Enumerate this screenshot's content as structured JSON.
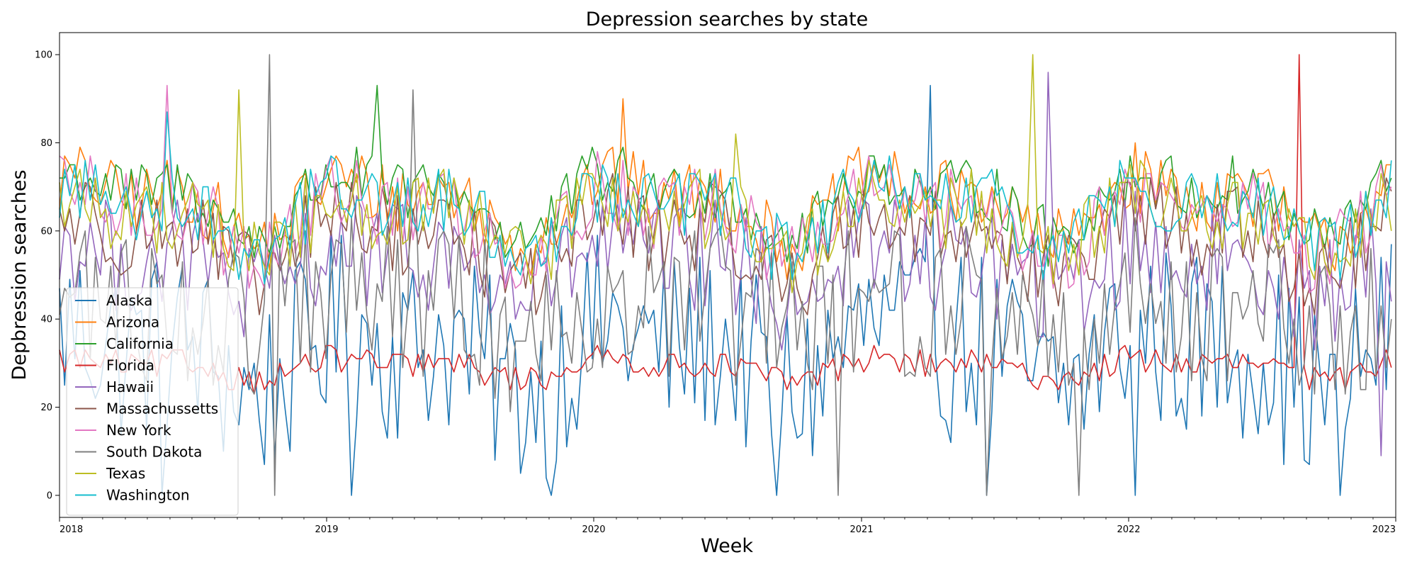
{
  "chart_data": {
    "type": "line",
    "title": "Depression searches by state",
    "xlabel": "Week",
    "ylabel": "Depbression searches",
    "x_start": "2018-01-01",
    "x_end": "2023-01-01",
    "x_ticks": [
      "2018",
      "2019",
      "2020",
      "2021",
      "2022",
      "2023"
    ],
    "y_ticks": [
      "0",
      "20",
      "40",
      "60",
      "80",
      "100"
    ],
    "ylim": [
      -5,
      105
    ],
    "grid": false,
    "legend_position": "lower-left",
    "series": [
      {
        "name": "Alaska",
        "color": "#1f77b4",
        "base": 32,
        "amp": 9,
        "noise": 22,
        "min": 0,
        "max": 93,
        "spikes": [
          [
            170,
            93
          ]
        ],
        "dips": [
          [
            20,
            0
          ],
          [
            210,
            0
          ],
          [
            140,
            0
          ],
          [
            250,
            0
          ],
          [
            57,
            0
          ],
          [
            96,
            0
          ],
          [
            181,
            0
          ]
        ]
      },
      {
        "name": "Arizona",
        "color": "#ff7f0e",
        "base": 66,
        "amp": 9,
        "noise": 8,
        "min": 35,
        "max": 90,
        "spikes": [
          [
            110,
            90
          ]
        ],
        "dips": []
      },
      {
        "name": "California",
        "color": "#2ca02c",
        "base": 67,
        "amp": 9,
        "noise": 7,
        "min": 40,
        "max": 93,
        "spikes": [
          [
            62,
            93
          ]
        ],
        "dips": []
      },
      {
        "name": "Florida",
        "color": "#d62728",
        "base": 29,
        "amp": 3,
        "noise": 3,
        "min": 19,
        "max": 100,
        "spikes": [
          [
            242,
            100
          ]
        ],
        "dips": []
      },
      {
        "name": "Hawaii",
        "color": "#9467bd",
        "base": 52,
        "amp": 7,
        "noise": 13,
        "min": 9,
        "max": 96,
        "spikes": [
          [
            193,
            96
          ]
        ],
        "dips": [
          [
            258,
            9
          ]
        ]
      },
      {
        "name": "Massachussetts",
        "color": "#8c564b",
        "base": 58,
        "amp": 9,
        "noise": 10,
        "min": 19,
        "max": 86,
        "spikes": [],
        "dips": []
      },
      {
        "name": "New York",
        "color": "#e377c2",
        "base": 63,
        "amp": 9,
        "noise": 9,
        "min": 30,
        "max": 93,
        "spikes": [
          [
            21,
            93
          ]
        ],
        "dips": []
      },
      {
        "name": "South Dakota",
        "color": "#7f7f7f",
        "base": 42,
        "amp": 6,
        "noise": 18,
        "min": 0,
        "max": 100,
        "spikes": [
          [
            41,
            100
          ],
          [
            69,
            92
          ]
        ],
        "dips": [
          [
            42,
            0
          ],
          [
            152,
            0
          ],
          [
            181,
            0
          ],
          [
            199,
            0
          ]
        ]
      },
      {
        "name": "Texas",
        "color": "#bcbd22",
        "base": 62,
        "amp": 8,
        "noise": 9,
        "min": 32,
        "max": 100,
        "spikes": [
          [
            190,
            100
          ],
          [
            35,
            92
          ],
          [
            132,
            82
          ]
        ],
        "dips": []
      },
      {
        "name": "Washington",
        "color": "#17becf",
        "base": 64,
        "amp": 9,
        "noise": 8,
        "min": 30,
        "max": 88,
        "spikes": [
          [
            21,
            87
          ]
        ],
        "dips": []
      }
    ]
  }
}
